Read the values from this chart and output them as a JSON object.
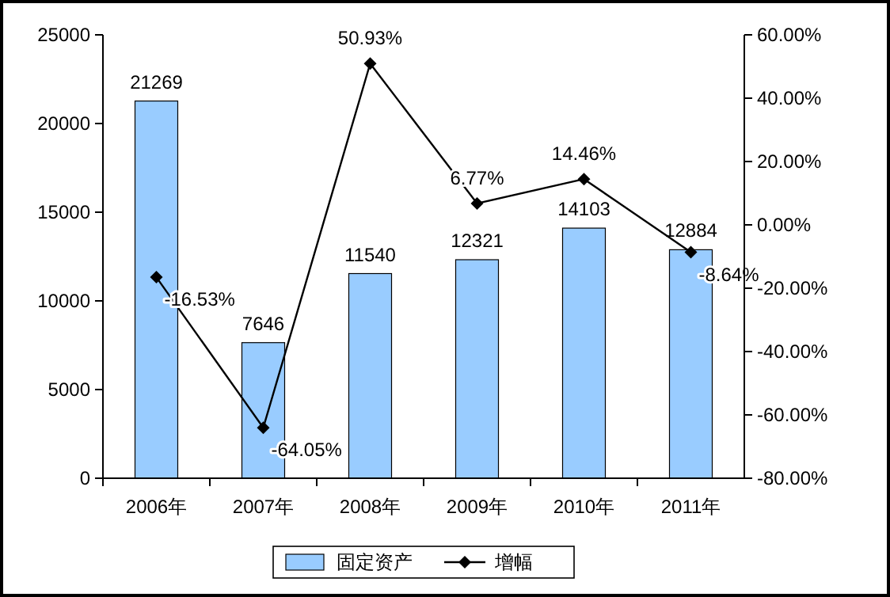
{
  "chart_data": {
    "type": "bar",
    "categories": [
      "2006年",
      "2007年",
      "2008年",
      "2009年",
      "2010年",
      "2011年"
    ],
    "series": [
      {
        "name": "固定资产",
        "color": "#99ccff",
        "values": [
          21269,
          7646,
          11540,
          12321,
          14103,
          12884
        ],
        "value_labels": [
          "21269",
          "7646",
          "11540",
          "12321",
          "14103",
          "12884"
        ]
      },
      {
        "name": "增幅",
        "type": "line",
        "axis": "y2",
        "color": "#000000",
        "values": [
          -16.53,
          -64.05,
          50.93,
          6.77,
          14.46,
          -8.64
        ],
        "value_labels": [
          "-16.53%",
          "-64.05%",
          "50.93%",
          "6.77%",
          "14.46%",
          "-8.64%"
        ]
      }
    ],
    "ylim": [
      0,
      25000
    ],
    "yticks": [
      0,
      5000,
      10000,
      15000,
      20000,
      25000
    ],
    "y2lim": [
      -80,
      60
    ],
    "y2ticks": [
      {
        "value": -80,
        "label": "-80.00%"
      },
      {
        "value": -60,
        "label": "-60.00%"
      },
      {
        "value": -40,
        "label": "-40.00%"
      },
      {
        "value": -20,
        "label": "-20.00%"
      },
      {
        "value": 0,
        "label": "0.00%"
      },
      {
        "value": 20,
        "label": "20.00%"
      },
      {
        "value": 40,
        "label": "40.00%"
      },
      {
        "value": 60,
        "label": "60.00%"
      }
    ],
    "grid": false,
    "legend": "bottom",
    "marker": "diamond",
    "line_style": "solid"
  }
}
